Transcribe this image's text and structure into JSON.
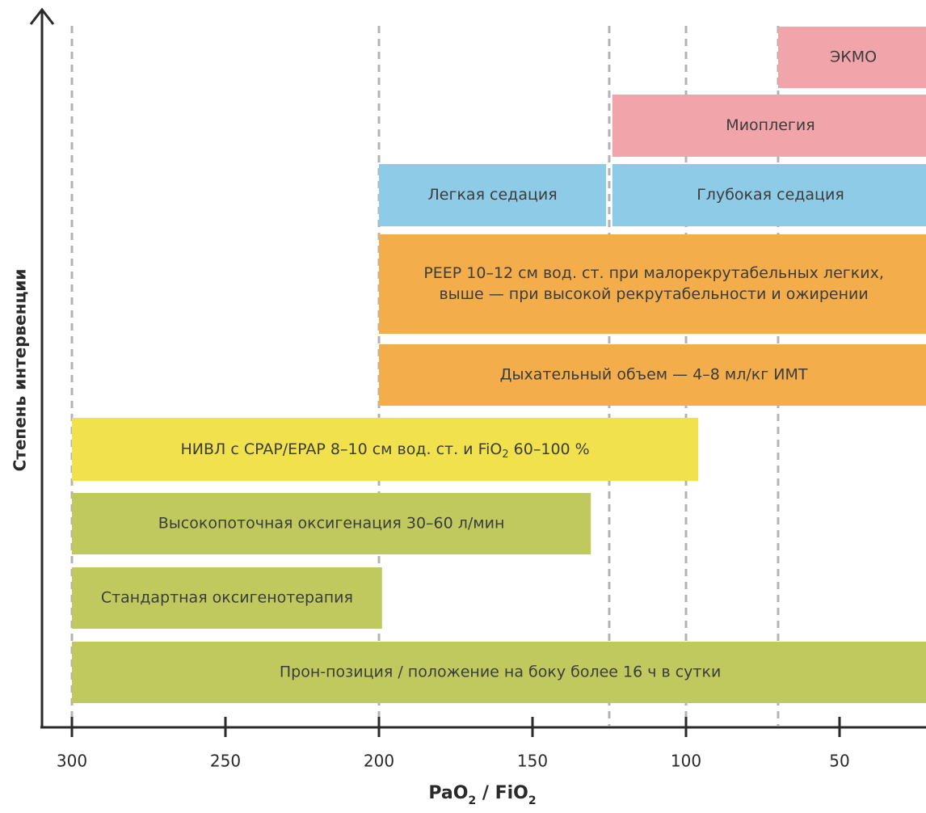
{
  "chart_data": {
    "type": "bar",
    "orientation": "horizontal-range",
    "xlabel": "PaO2 / FiO2",
    "ylabel": "Степень интервенции",
    "x_axis_reversed": true,
    "xlim": [
      300,
      21
    ],
    "x_ticks": [
      300,
      250,
      200,
      150,
      100,
      50
    ],
    "reference_lines": [
      300,
      200,
      125,
      100,
      70
    ],
    "colors": {
      "olive": "#bfc95e",
      "yellow": "#f1e24d",
      "orange": "#f4ad4b",
      "blue": "#8ecbe7",
      "pink": "#f1a4a9"
    },
    "bars": [
      {
        "label": "ЭКМО",
        "from": 70,
        "to": 21,
        "level": 9,
        "color": "pink"
      },
      {
        "label": "Миоплегия",
        "from": 124,
        "to": 21,
        "level": 8,
        "color": "pink"
      },
      {
        "label": "Легкая седация",
        "from": 200,
        "to": 126,
        "level": 7,
        "color": "blue"
      },
      {
        "label": "Глубокая седация",
        "from": 124,
        "to": 21,
        "level": 7,
        "color": "blue"
      },
      {
        "label": "PEEP 10–12 см вод. ст. при малорекрутабельных легких, выше — при высокой рекрутабельности и ожирении",
        "lines": [
          "PEEP 10–12 см вод. ст. при малорекрутабельных легких,",
          "выше — при высокой рекрутабельности и ожирении"
        ],
        "from": 200,
        "to": 21,
        "level": 6,
        "color": "orange"
      },
      {
        "label": "Дыхательный объем — 4–8 мл/кг ИМТ",
        "from": 200,
        "to": 21,
        "level": 5,
        "color": "orange"
      },
      {
        "label": "НИВЛ с CPAP/EPAP 8–10 см вод. ст. и FiO2 60–100 %",
        "from": 300,
        "to": 96,
        "level": 4,
        "color": "yellow"
      },
      {
        "label": "Высокопоточная оксигенация 30–60 л/мин",
        "from": 300,
        "to": 131,
        "level": 3,
        "color": "olive"
      },
      {
        "label": "Стандартная оксигенотерапия",
        "from": 300,
        "to": 199,
        "level": 2,
        "color": "olive"
      },
      {
        "label": "Прон-позиция / положение на боку более 16 ч в сутки",
        "from": 300,
        "to": 21,
        "level": 1,
        "color": "olive"
      }
    ]
  }
}
